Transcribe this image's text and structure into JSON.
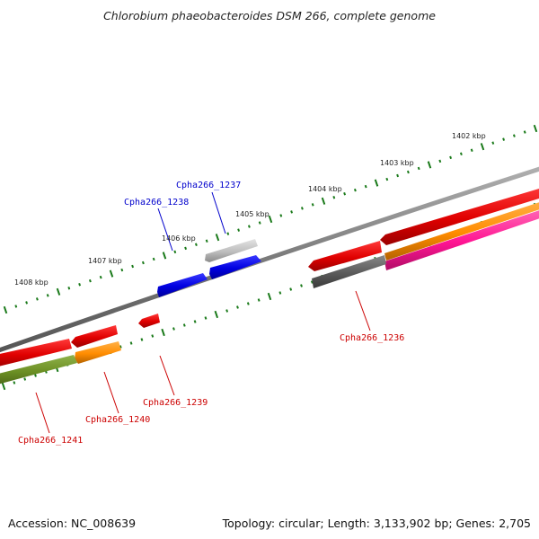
{
  "title": "Chlorobium phaeobacteroides DSM 266, complete genome",
  "footer": {
    "accession": "Accession: NC_008639",
    "stats": "Topology: circular; Length: 3,133,902 bp; Genes: 2,705"
  },
  "colors": {
    "backbone": "#808080",
    "tick": "#1a7a1a",
    "label_plus": "#0000cc",
    "label_minus": "#cc0000"
  },
  "ticks": [
    {
      "label": "1402 kbp"
    },
    {
      "label": "1403 kbp"
    },
    {
      "label": "1404 kbp"
    },
    {
      "label": "1405 kbp"
    },
    {
      "label": "1406 kbp"
    },
    {
      "label": "1407 kbp"
    },
    {
      "label": "1408 kbp"
    }
  ],
  "gene_labels": [
    {
      "name": "Cpha266_1237",
      "color": "#0000cc"
    },
    {
      "name": "Cpha266_1238",
      "color": "#0000cc"
    },
    {
      "name": "Cpha266_1236",
      "color": "#cc0000"
    },
    {
      "name": "Cpha266_1239",
      "color": "#cc0000"
    },
    {
      "name": "Cpha266_1240",
      "color": "#cc0000"
    },
    {
      "name": "Cpha266_1241",
      "color": "#cc0000"
    }
  ]
}
